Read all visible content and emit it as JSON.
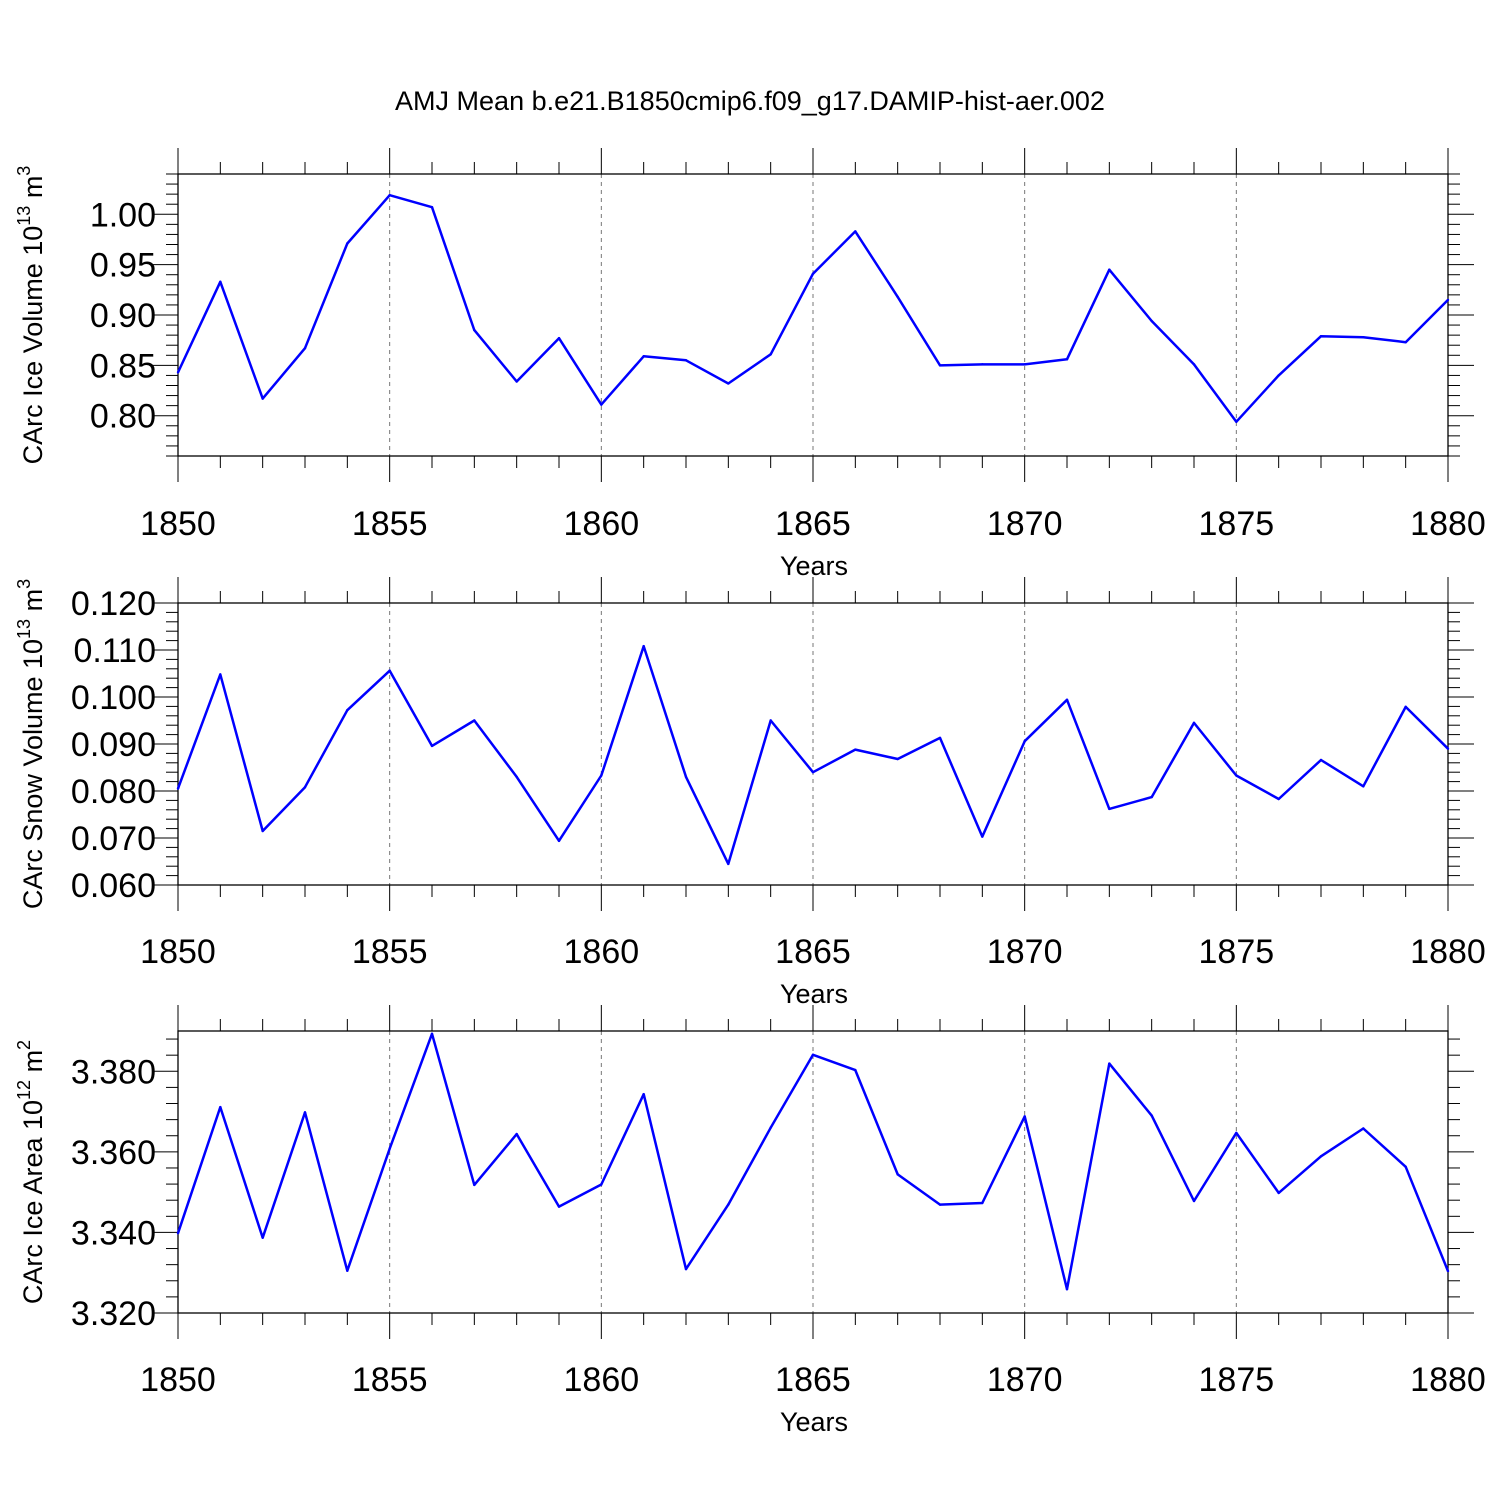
{
  "title": "AMJ Mean b.e21.B1850cmip6.f09_g17.DAMIP-hist-aer.002",
  "colors": {
    "line": "#0000ff",
    "axis": "#000000",
    "grid": "#777777"
  },
  "chart_data": [
    {
      "type": "line",
      "xlabel": "Years",
      "ylabel": "CArc Ice Volume 10",
      "ylabel_exp": "13",
      "ylabel_unit": " m",
      "ylabel_unit_exp": "3",
      "xlim": [
        1850,
        1880
      ],
      "ylim": [
        0.76,
        1.04
      ],
      "xticks": [
        1850,
        1855,
        1860,
        1865,
        1870,
        1875,
        1880
      ],
      "yticks": [
        0.8,
        0.85,
        0.9,
        0.95,
        1.0
      ],
      "ytick_labels": [
        "0.80",
        "0.85",
        "0.90",
        "0.95",
        "1.00"
      ],
      "x": [
        1850,
        1851,
        1852,
        1853,
        1854,
        1855,
        1856,
        1857,
        1858,
        1859,
        1860,
        1861,
        1862,
        1863,
        1864,
        1865,
        1866,
        1867,
        1868,
        1869,
        1870,
        1871,
        1872,
        1873,
        1874,
        1875,
        1876,
        1877,
        1878,
        1879,
        1880
      ],
      "values": [
        0.843,
        0.933,
        0.817,
        0.867,
        0.971,
        1.019,
        1.007,
        0.885,
        0.834,
        0.877,
        0.811,
        0.859,
        0.855,
        0.832,
        0.861,
        0.941,
        0.983,
        0.918,
        0.85,
        0.851,
        0.851,
        0.856,
        0.945,
        0.894,
        0.851,
        0.794,
        0.84,
        0.879,
        0.878,
        0.873,
        0.915
      ]
    },
    {
      "type": "line",
      "xlabel": "Years",
      "ylabel": "CArc Snow Volume 10",
      "ylabel_exp": "13",
      "ylabel_unit": " m",
      "ylabel_unit_exp": "3",
      "xlim": [
        1850,
        1880
      ],
      "ylim": [
        0.06,
        0.12
      ],
      "xticks": [
        1850,
        1855,
        1860,
        1865,
        1870,
        1875,
        1880
      ],
      "yticks": [
        0.06,
        0.07,
        0.08,
        0.09,
        0.1,
        0.11,
        0.12
      ],
      "ytick_labels": [
        "0.060",
        "0.070",
        "0.080",
        "0.090",
        "0.100",
        "0.110",
        "0.120"
      ],
      "x": [
        1850,
        1851,
        1852,
        1853,
        1854,
        1855,
        1856,
        1857,
        1858,
        1859,
        1860,
        1861,
        1862,
        1863,
        1864,
        1865,
        1866,
        1867,
        1868,
        1869,
        1870,
        1871,
        1872,
        1873,
        1874,
        1875,
        1876,
        1877,
        1878,
        1879,
        1880
      ],
      "values": [
        0.0805,
        0.1048,
        0.0715,
        0.0808,
        0.0972,
        0.1056,
        0.0896,
        0.095,
        0.083,
        0.0694,
        0.0833,
        0.1108,
        0.083,
        0.0645,
        0.095,
        0.084,
        0.0888,
        0.0868,
        0.0913,
        0.0703,
        0.0906,
        0.0994,
        0.0762,
        0.0787,
        0.0945,
        0.0833,
        0.0783,
        0.0866,
        0.081,
        0.0979,
        0.089
      ]
    },
    {
      "type": "line",
      "xlabel": "Years",
      "ylabel": "CArc Ice Area 10",
      "ylabel_exp": "12",
      "ylabel_unit": " m",
      "ylabel_unit_exp": "2",
      "xlim": [
        1850,
        1880
      ],
      "ylim": [
        3.32,
        3.39
      ],
      "xticks": [
        1850,
        1855,
        1860,
        1865,
        1870,
        1875,
        1880
      ],
      "yticks": [
        3.32,
        3.34,
        3.36,
        3.38
      ],
      "ytick_labels": [
        "3.320",
        "3.340",
        "3.360",
        "3.380"
      ],
      "x": [
        1850,
        1851,
        1852,
        1853,
        1854,
        1855,
        1856,
        1857,
        1858,
        1859,
        1860,
        1861,
        1862,
        1863,
        1864,
        1865,
        1866,
        1867,
        1868,
        1869,
        1870,
        1871,
        1872,
        1873,
        1874,
        1875,
        1876,
        1877,
        1878,
        1879,
        1880
      ],
      "values": [
        3.3398,
        3.3711,
        3.3387,
        3.3698,
        3.3305,
        3.3608,
        3.3893,
        3.3518,
        3.3644,
        3.3464,
        3.3519,
        3.3743,
        3.3309,
        3.3469,
        3.366,
        3.3841,
        3.3803,
        3.3544,
        3.3469,
        3.3473,
        3.3688,
        3.3259,
        3.3819,
        3.369,
        3.3478,
        3.3647,
        3.3498,
        3.3589,
        3.3658,
        3.3563,
        3.3304
      ]
    }
  ]
}
